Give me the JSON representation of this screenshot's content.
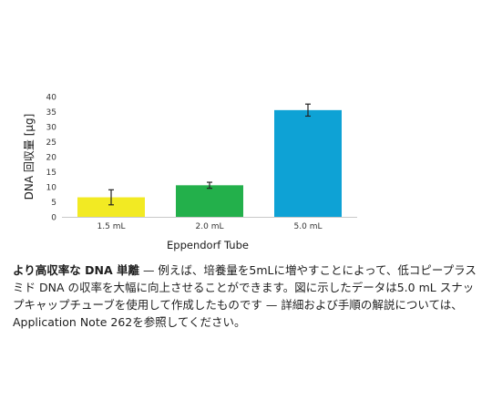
{
  "chart_data": {
    "type": "bar",
    "categories": [
      "1.5 mL",
      "2.0 mL",
      "5.0 mL"
    ],
    "values": [
      6.5,
      10.5,
      35.5
    ],
    "errors": [
      2.5,
      1.0,
      2.0
    ],
    "bar_colors": [
      "#f2ea23",
      "#23b04b",
      "#0ea2d5"
    ],
    "ylabel": "DNA 回収量 [μg]",
    "xlabel": "Eppendorf Tube",
    "yticks": [
      0,
      5,
      10,
      15,
      20,
      25,
      30,
      35,
      40
    ],
    "ylim": [
      0,
      40
    ],
    "grid": false,
    "legend": "none"
  },
  "caption": {
    "bold_text": "より高収率な DNA 単離",
    "body_text": " — 例えば、培養量を5mLに増やすことによって、低コピープラスミド DNA の収率を大幅に向上させることができます。図に示したデータは5.0 mL スナップキャップチューブを使用して作成したものです — 詳細および手順の解説については、Application Note 262を参照してください。"
  }
}
